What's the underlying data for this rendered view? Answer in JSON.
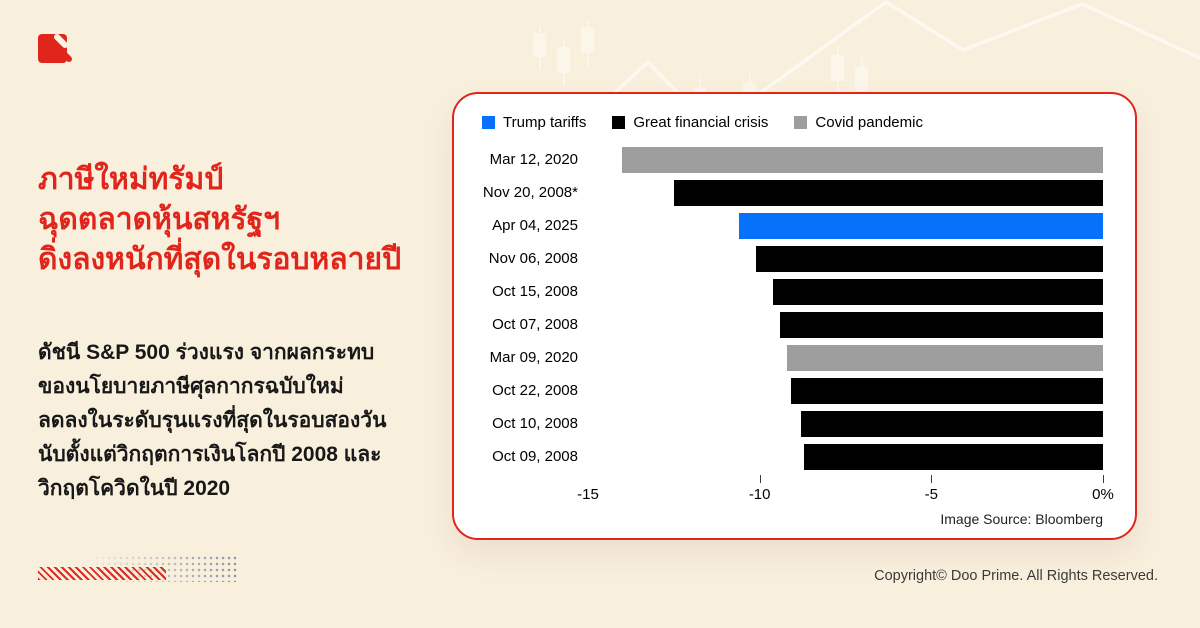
{
  "headline": {
    "lines": [
      "ภาษีใหม่ทรัมป์",
      "ฉุดตลาดหุ้นสหรัฐฯ",
      "ดิ่งลงหนักที่สุดในรอบหลายปี"
    ]
  },
  "body": {
    "lines": [
      "ดัชนี S&P 500 ร่วงแรง จากผลกระทบ",
      "ของนโยบายภาษีศุลกากรฉบับใหม่",
      "ลดลงในระดับรุนแรงที่สุดในรอบสองวัน",
      "นับตั้งแต่วิกฤตการเงินโลกปี 2008 และ",
      "วิกฤตโควิดในปี 2020"
    ]
  },
  "chart_data": {
    "type": "bar",
    "orientation": "horizontal",
    "categories": [
      "Mar 12, 2020",
      "Nov 20, 2008*",
      "Apr 04, 2025",
      "Nov 06, 2008",
      "Oct 15, 2008",
      "Oct 07, 2008",
      "Mar 09, 2020",
      "Oct 22, 2008",
      "Oct 10, 2008",
      "Oct 09, 2008"
    ],
    "values": [
      -14.0,
      -12.5,
      -10.6,
      -10.1,
      -9.6,
      -9.4,
      -9.2,
      -9.1,
      -8.8,
      -8.7
    ],
    "groups": [
      "covid",
      "gfc",
      "tariffs",
      "gfc",
      "gfc",
      "gfc",
      "covid",
      "gfc",
      "gfc",
      "gfc"
    ],
    "legend": [
      {
        "key": "tariffs",
        "label": "Trump tariffs",
        "color": "#0671fa"
      },
      {
        "key": "gfc",
        "label": "Great financial crisis",
        "color": "#000000"
      },
      {
        "key": "covid",
        "label": "Covid pandemic",
        "color": "#9e9e9e"
      }
    ],
    "xlim": [
      -15,
      0
    ],
    "xticks": [
      {
        "value": -15,
        "label": "-15",
        "tick": false
      },
      {
        "value": -10,
        "label": "-10",
        "tick": true
      },
      {
        "value": -5,
        "label": "-5",
        "tick": true
      },
      {
        "value": 0,
        "label": "0%",
        "tick": true
      }
    ],
    "unit": "percent",
    "grid": false,
    "legend_position": "top",
    "source_note": "Image Source: Bloomberg"
  },
  "footer": {
    "copyright": "Copyright© Doo Prime. All Rights Reserved."
  },
  "colors": {
    "background": "#f9efdd",
    "accent_red": "#e0261c",
    "bar_blue": "#0671fa",
    "bar_black": "#000000",
    "bar_gray": "#9e9e9e"
  }
}
